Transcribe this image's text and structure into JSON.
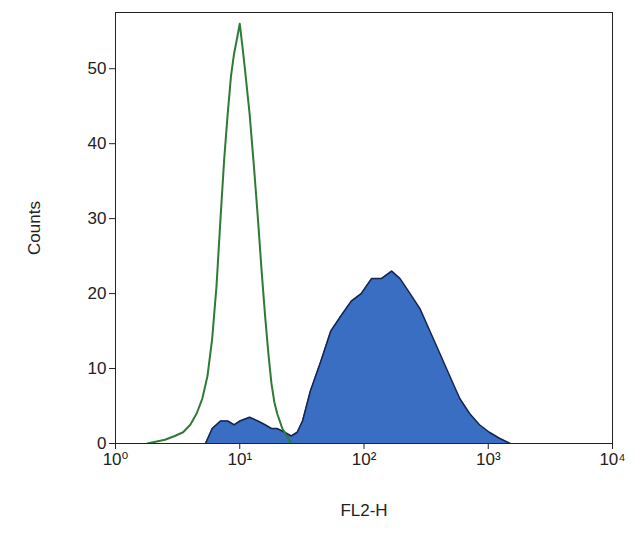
{
  "chart_data": {
    "type": "area",
    "x_label": "FL2-H",
    "y_label": "Counts",
    "log": "x",
    "xlim": [
      1,
      10000
    ],
    "xticks": [
      {
        "value": 1,
        "label": "10⁰"
      },
      {
        "value": 10,
        "label": "10¹"
      },
      {
        "value": 100,
        "label": "10²"
      },
      {
        "value": 1000,
        "label": "10³"
      },
      {
        "value": 10000,
        "label": "10⁴"
      }
    ],
    "ylim": [
      0,
      57.5
    ],
    "yticks": [
      0,
      10,
      20,
      30,
      40,
      50
    ],
    "series": [
      {
        "type": "area",
        "color": "#3a6ec2",
        "x": [
          5.3,
          6,
          7,
          8,
          9,
          10,
          12,
          14,
          16,
          18,
          20,
          23,
          26,
          29,
          32,
          37,
          45,
          54,
          65,
          79,
          95,
          115,
          138,
          167,
          195,
          235,
          282,
          339,
          408,
          490,
          590,
          708,
          850,
          1020,
          1230,
          1500
        ],
        "values": [
          0,
          2,
          3,
          3,
          2.5,
          3,
          3.5,
          3,
          2.5,
          2,
          2,
          1.5,
          1,
          1.5,
          3,
          7,
          11,
          15,
          17,
          19,
          20,
          22,
          22,
          23,
          22,
          20,
          18,
          15,
          12,
          9,
          6,
          4,
          2.5,
          1.5,
          0.7,
          0
        ]
      },
      {
        "type": "line",
        "color": "#2f7a34",
        "x": [
          1.8,
          2.5,
          3,
          3.5,
          4,
          4.5,
          5,
          5.5,
          6,
          6.5,
          7,
          7.5,
          8,
          8.5,
          9,
          9.5,
          10,
          10.5,
          11,
          12,
          13,
          14,
          15,
          16,
          17,
          18,
          19,
          20,
          22,
          24,
          26
        ],
        "values": [
          0,
          0.5,
          1,
          1.5,
          2.5,
          4,
          6,
          9,
          14,
          21,
          30,
          38,
          44,
          49,
          52,
          54,
          56,
          53,
          50,
          44,
          37,
          30,
          23,
          17,
          12,
          8,
          5.5,
          4,
          2,
          1,
          0
        ]
      }
    ]
  }
}
